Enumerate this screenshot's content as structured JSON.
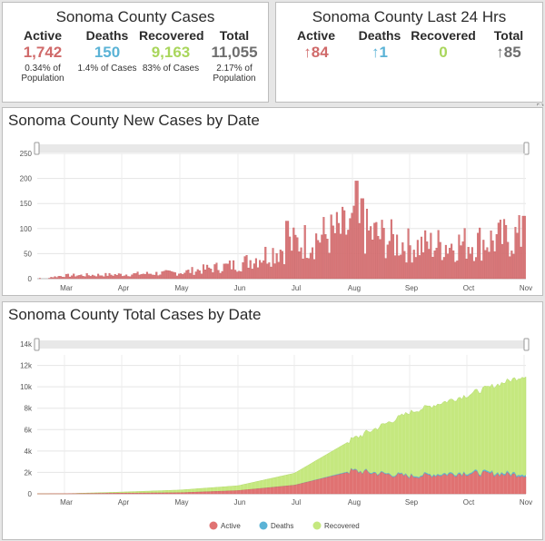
{
  "colors": {
    "active": "#e07272",
    "deaths": "#5bb3d6",
    "recovered": "#c5e87f",
    "total": "#6e6e6e",
    "bar": "#d9787a",
    "bar_stroke": "#c55a5c"
  },
  "summary_cases": {
    "title": "Sonoma County Cases",
    "active": {
      "label": "Active",
      "value": "1,742",
      "sub1": "0.34% of",
      "sub2": "Population"
    },
    "deaths": {
      "label": "Deaths",
      "value": "150",
      "sub1": "1.4% of Cases"
    },
    "recovered": {
      "label": "Recovered",
      "value": "9,163",
      "sub1": "83% of Cases"
    },
    "total": {
      "label": "Total",
      "value": "11,055",
      "sub1": "2.17% of",
      "sub2": "Population"
    }
  },
  "summary_24h": {
    "title": "Sonoma County Last 24 Hrs",
    "active": {
      "label": "Active",
      "value": "↑84"
    },
    "deaths": {
      "label": "Deaths",
      "value": "↑1"
    },
    "recovered": {
      "label": "Recovered",
      "value": "0"
    },
    "total": {
      "label": "Total",
      "value": "↑85"
    }
  },
  "new_cases": {
    "title": "Sonoma County New Cases by Date"
  },
  "total_cases": {
    "title": "Sonoma County Total Cases by Date",
    "legend": [
      "Active",
      "Deaths",
      "Recovered"
    ]
  },
  "chart_data": [
    {
      "type": "bar",
      "title": "Sonoma County New Cases by Date",
      "x_start": "2020-02-15",
      "x_end": "2020-11-02",
      "xticks": [
        "Mar",
        "Apr",
        "May",
        "Jun",
        "Jul",
        "Aug",
        "Sep",
        "Oct",
        "Nov"
      ],
      "yticks": [
        0,
        50,
        100,
        150,
        200,
        250
      ],
      "ylim": [
        0,
        250
      ],
      "series": [
        {
          "name": "New Cases",
          "monthly_typical": {
            "Feb": 0,
            "Mar": 6,
            "Apr": 8,
            "May": 12,
            "Jun": 28,
            "Jul": 70,
            "Aug": 100,
            "Sep": 65,
            "Oct": 70,
            "Nov": 85
          },
          "peaks": [
            {
              "date": "Aug",
              "value": 195
            },
            {
              "date": "Aug",
              "value": 160
            },
            {
              "date": "Jul",
              "value": 115
            },
            {
              "date": "Oct",
              "value": 125
            }
          ]
        }
      ]
    },
    {
      "type": "area",
      "title": "Sonoma County Total Cases by Date",
      "xticks": [
        "Mar",
        "Apr",
        "May",
        "Jun",
        "Jul",
        "Aug",
        "Sep",
        "Oct",
        "Nov"
      ],
      "yticks": [
        "0",
        "2k",
        "4k",
        "6k",
        "8k",
        "10k",
        "12k",
        "14k"
      ],
      "ylim": [
        0,
        14000
      ],
      "stacked": true,
      "legend": [
        "Active",
        "Deaths",
        "Recovered"
      ],
      "series": [
        {
          "name": "Active",
          "values_by_month": {
            "Mar": 10,
            "Apr": 60,
            "May": 100,
            "Jun": 300,
            "Jul": 800,
            "Aug": 2100,
            "Sep": 1600,
            "Oct": 1900,
            "Nov": 1742
          }
        },
        {
          "name": "Deaths",
          "values_by_month": {
            "Mar": 0,
            "Apr": 2,
            "May": 3,
            "Jun": 4,
            "Jul": 20,
            "Aug": 80,
            "Sep": 110,
            "Oct": 130,
            "Nov": 150
          }
        },
        {
          "name": "Recovered",
          "values_by_month": {
            "Mar": 0,
            "Apr": 100,
            "May": 250,
            "Jun": 450,
            "Jul": 1100,
            "Aug": 2900,
            "Sep": 5900,
            "Oct": 7200,
            "Nov": 9163
          }
        }
      ]
    }
  ]
}
